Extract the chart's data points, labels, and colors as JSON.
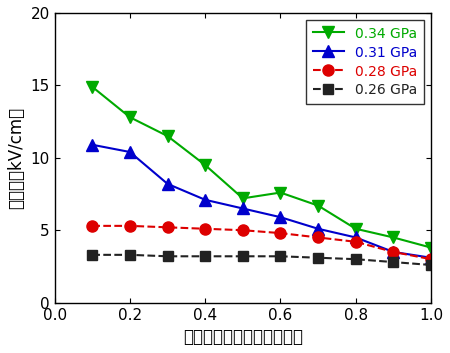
{
  "series": [
    {
      "label": "0.34 GPa",
      "color": "#00aa00",
      "marker": "v",
      "markersize": 8,
      "x": [
        0.1,
        0.2,
        0.3,
        0.4,
        0.5,
        0.6,
        0.7,
        0.8,
        0.9,
        1.0
      ],
      "y": [
        14.9,
        12.8,
        11.5,
        9.5,
        7.2,
        7.6,
        6.7,
        5.1,
        4.5,
        3.8
      ],
      "linestyle": "-"
    },
    {
      "label": "0.31 GPa",
      "color": "#0000cc",
      "marker": "^",
      "markersize": 8,
      "x": [
        0.1,
        0.2,
        0.3,
        0.4,
        0.5,
        0.6,
        0.7,
        0.8,
        0.9,
        1.0
      ],
      "y": [
        10.9,
        10.4,
        8.2,
        7.1,
        6.5,
        5.9,
        5.1,
        4.5,
        3.5,
        3.1
      ],
      "linestyle": "-"
    },
    {
      "label": "0.28 GPa",
      "color": "#dd0000",
      "marker": "o",
      "markersize": 8,
      "x": [
        0.1,
        0.2,
        0.3,
        0.4,
        0.5,
        0.6,
        0.7,
        0.8,
        0.9,
        1.0
      ],
      "y": [
        5.3,
        5.3,
        5.2,
        5.1,
        5.0,
        4.8,
        4.5,
        4.2,
        3.5,
        3.0
      ],
      "linestyle": "--"
    },
    {
      "label": "0.26 GPa",
      "color": "#222222",
      "marker": "s",
      "markersize": 7,
      "x": [
        0.1,
        0.2,
        0.3,
        0.4,
        0.5,
        0.6,
        0.7,
        0.8,
        0.9,
        1.0
      ],
      "y": [
        3.3,
        3.3,
        3.2,
        3.2,
        3.2,
        3.2,
        3.1,
        3.0,
        2.8,
        2.6
      ],
      "linestyle": "--"
    }
  ],
  "xlabel": "転移温度で規格化した温度",
  "ylabel": "抗電界（kV/cm）",
  "xlim": [
    0.0,
    1.0
  ],
  "ylim": [
    0,
    20
  ],
  "xticks": [
    0.0,
    0.2,
    0.4,
    0.6,
    0.8,
    1.0
  ],
  "yticks": [
    0,
    5,
    10,
    15,
    20
  ],
  "legend_loc": "upper right",
  "figsize": [
    4.5,
    3.53
  ],
  "dpi": 100,
  "bg_color": "#ffffff",
  "xlabel_fontsize": 12,
  "ylabel_fontsize": 12,
  "tick_fontsize": 11,
  "legend_fontsize": 10
}
